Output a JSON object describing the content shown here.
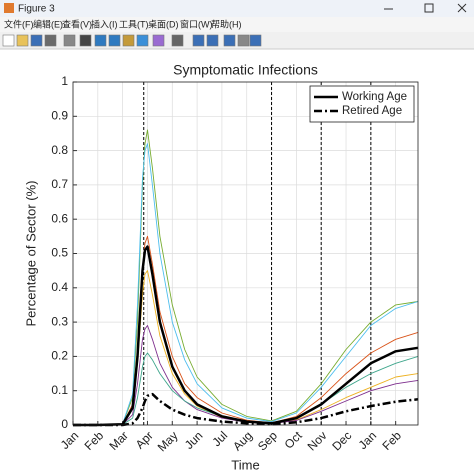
{
  "window": {
    "title": "Figure 3",
    "menu": [
      "文件(F)",
      "编辑(E)",
      "查看(V)",
      "插入(I)",
      "工具(T)",
      "桌面(D)",
      "窗口(W)",
      "帮助(H)"
    ]
  },
  "chart_data": {
    "type": "line",
    "title": "Symptomatic Infections",
    "x_label": "Time",
    "y_label": "Percentage of Sector (%)",
    "x": [
      0,
      1,
      2,
      2.4,
      2.6,
      2.8,
      2.9,
      3.0,
      3.2,
      3.5,
      4,
      4.5,
      5,
      6,
      7,
      8,
      9,
      10,
      11,
      12,
      13,
      13.9
    ],
    "xlim": [
      0,
      13.9
    ],
    "xticks": [
      {
        "value": 0,
        "label": "Jan"
      },
      {
        "value": 1,
        "label": "Feb"
      },
      {
        "value": 2,
        "label": "Mar"
      },
      {
        "value": 3,
        "label": "Apr"
      },
      {
        "value": 4,
        "label": "May"
      },
      {
        "value": 5,
        "label": "Jun"
      },
      {
        "value": 6,
        "label": "Jul"
      },
      {
        "value": 7,
        "label": "Aug"
      },
      {
        "value": 8,
        "label": "Sep"
      },
      {
        "value": 9,
        "label": "Oct"
      },
      {
        "value": 10,
        "label": "Nov"
      },
      {
        "value": 11,
        "label": "Dec"
      },
      {
        "value": 12,
        "label": "Jan"
      },
      {
        "value": 13,
        "label": "Feb"
      }
    ],
    "ylim": [
      0,
      1
    ],
    "yticks": [
      0,
      0.1,
      0.2,
      0.3,
      0.4,
      0.5,
      0.6,
      0.7,
      0.8,
      0.9,
      1
    ],
    "grid": true,
    "legend": "northeast",
    "vlines": [
      2.85,
      8,
      10,
      12
    ],
    "series": [
      {
        "color": "#77ac30",
        "values": [
          0,
          0,
          0.003,
          0.08,
          0.3,
          0.7,
          0.82,
          0.86,
          0.75,
          0.55,
          0.35,
          0.22,
          0.14,
          0.06,
          0.025,
          0.012,
          0.04,
          0.12,
          0.22,
          0.3,
          0.35,
          0.36
        ]
      },
      {
        "color": "#4dbeee",
        "values": [
          0,
          0,
          0.003,
          0.09,
          0.35,
          0.72,
          0.8,
          0.82,
          0.7,
          0.5,
          0.3,
          0.19,
          0.12,
          0.05,
          0.02,
          0.01,
          0.035,
          0.11,
          0.2,
          0.29,
          0.34,
          0.36
        ]
      },
      {
        "color": "#d95319",
        "values": [
          0,
          0,
          0.002,
          0.06,
          0.22,
          0.46,
          0.53,
          0.55,
          0.47,
          0.33,
          0.2,
          0.12,
          0.08,
          0.035,
          0.014,
          0.006,
          0.025,
          0.08,
          0.15,
          0.21,
          0.25,
          0.27
        ]
      },
      {
        "color": "#edb120",
        "values": [
          0,
          0,
          0.002,
          0.05,
          0.18,
          0.38,
          0.44,
          0.45,
          0.38,
          0.26,
          0.15,
          0.09,
          0.055,
          0.022,
          0.009,
          0.004,
          0.015,
          0.045,
          0.08,
          0.11,
          0.14,
          0.15
        ]
      },
      {
        "color": "#7e2f8e",
        "values": [
          0,
          0,
          0.001,
          0.03,
          0.12,
          0.25,
          0.28,
          0.29,
          0.25,
          0.18,
          0.11,
          0.07,
          0.045,
          0.02,
          0.008,
          0.004,
          0.013,
          0.04,
          0.07,
          0.1,
          0.12,
          0.13
        ]
      },
      {
        "color": "#3fa68c",
        "values": [
          0,
          0,
          0.001,
          0.02,
          0.08,
          0.17,
          0.2,
          0.21,
          0.19,
          0.15,
          0.1,
          0.07,
          0.05,
          0.025,
          0.012,
          0.006,
          0.02,
          0.06,
          0.11,
          0.15,
          0.18,
          0.2
        ]
      },
      {
        "name": "Working Age",
        "color": "#000000",
        "width": 2.5,
        "dash": "solid",
        "values": [
          0,
          0,
          0.002,
          0.05,
          0.2,
          0.45,
          0.51,
          0.52,
          0.44,
          0.3,
          0.17,
          0.1,
          0.06,
          0.025,
          0.01,
          0.005,
          0.02,
          0.06,
          0.12,
          0.18,
          0.215,
          0.225
        ]
      },
      {
        "name": "Retired Age",
        "color": "#000000",
        "width": 2.5,
        "dash": "dashdot",
        "values": [
          0,
          0,
          0,
          0.005,
          0.02,
          0.05,
          0.07,
          0.085,
          0.09,
          0.07,
          0.045,
          0.03,
          0.02,
          0.01,
          0.005,
          0.002,
          0.008,
          0.02,
          0.04,
          0.055,
          0.068,
          0.075
        ]
      }
    ]
  }
}
